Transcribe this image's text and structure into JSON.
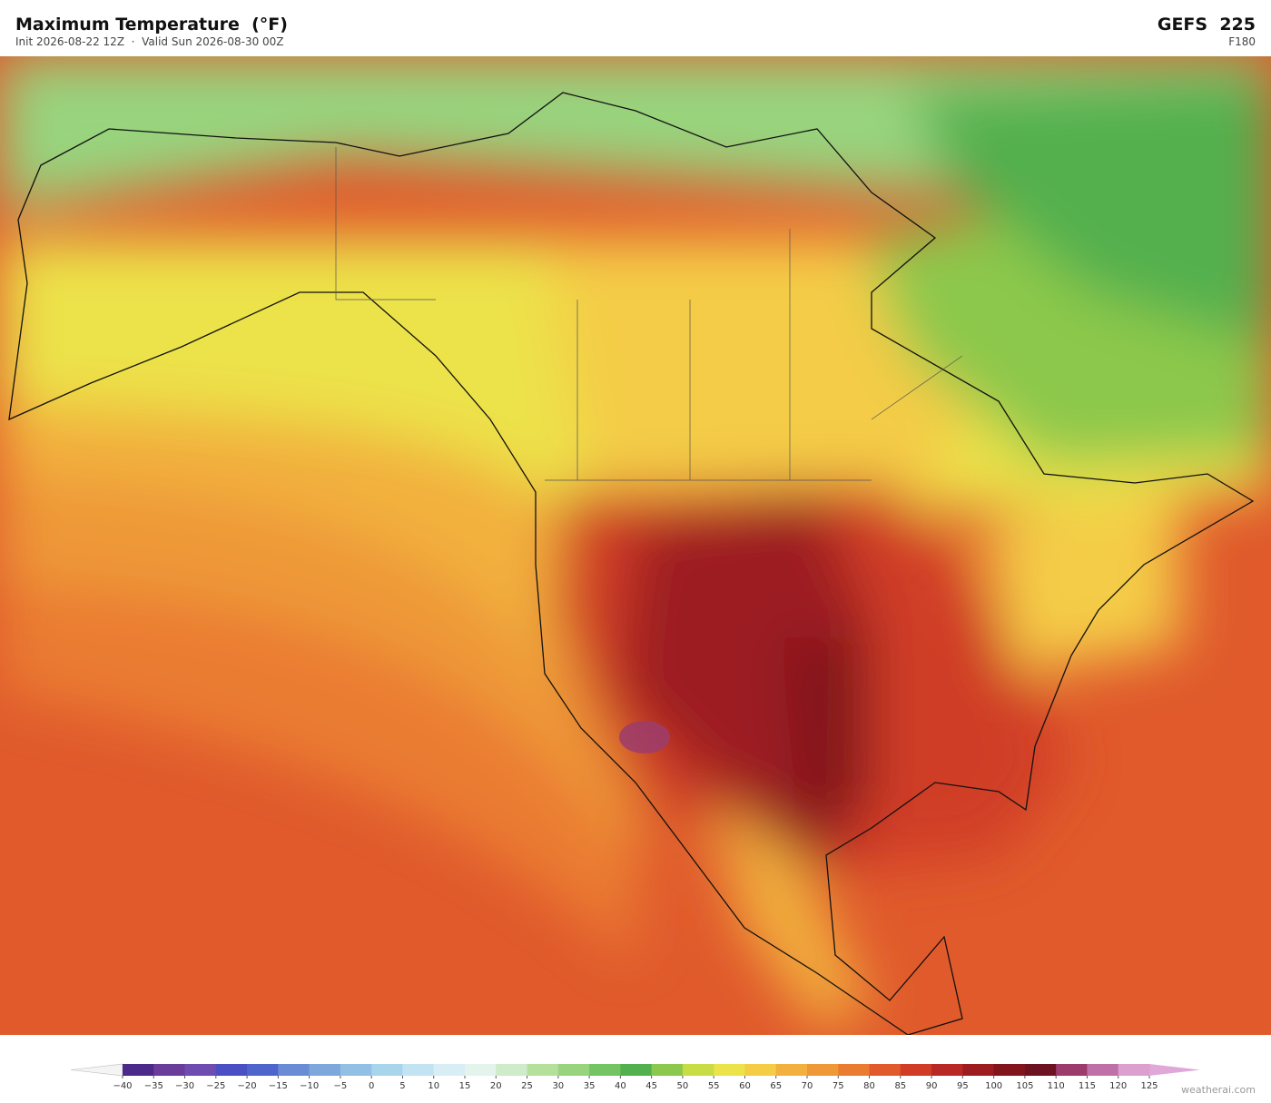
{
  "header": {
    "title": "Maximum Temperature  (°F)",
    "subtitle": "Init 2026-08-22 12Z  ·  Valid Sun 2026-08-30 00Z",
    "model": "GEFS  225",
    "forecast_hour": "F180"
  },
  "colorbar": {
    "ticks": [
      {
        "value": -40,
        "label": "−40"
      },
      {
        "value": -35,
        "label": "−35"
      },
      {
        "value": -30,
        "label": "−30"
      },
      {
        "value": -25,
        "label": "−25"
      },
      {
        "value": -20,
        "label": "−20"
      },
      {
        "value": -15,
        "label": "−15"
      },
      {
        "value": -10,
        "label": "−10"
      },
      {
        "value": -5,
        "label": "−5"
      },
      0,
      5,
      10,
      15,
      20,
      25,
      30,
      35,
      40,
      45,
      50,
      55,
      60,
      65,
      70,
      75,
      80,
      85,
      90,
      95,
      100,
      105,
      110,
      115,
      120,
      125
    ],
    "colors": [
      "#4b2a8a",
      "#6a3d9a",
      "#6e4cb0",
      "#4b4fc4",
      "#4e66cc",
      "#6a8cd4",
      "#7ea8dc",
      "#92bfe4",
      "#a8d4ec",
      "#c2e4f2",
      "#d8eef4",
      "#e4f4ec",
      "#cfebc9",
      "#b4e09c",
      "#98d47e",
      "#74c464",
      "#52b04e",
      "#8cc84c",
      "#c8dc46",
      "#ece24a",
      "#f4cc46",
      "#f2b03e",
      "#ee9838",
      "#ea7c32",
      "#e05a2c",
      "#d03c26",
      "#b82824",
      "#9c1c20",
      "#82141c",
      "#6c1220",
      "#9c3c6c",
      "#c070a8",
      "#dca0d0"
    ],
    "under_color": "#f4f4f4",
    "over_color": "#e0a8d8"
  },
  "watermark": "weatherai.com"
}
